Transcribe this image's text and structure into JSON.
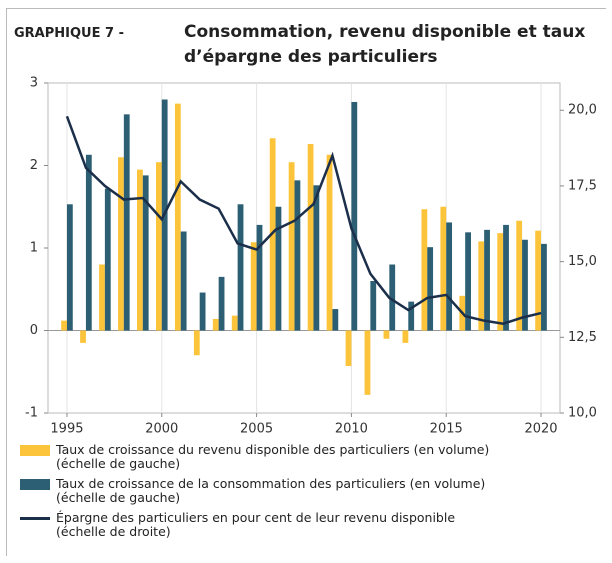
{
  "chart_data": {
    "type": "bar_line",
    "label": "GRAPHIQUE 7 -",
    "title": "Consommation, revenu disponible et taux\nd’épargne des particuliers",
    "x": [
      1995,
      1996,
      1997,
      1998,
      1999,
      2000,
      2001,
      2002,
      2003,
      2004,
      2005,
      2006,
      2007,
      2008,
      2009,
      2010,
      2011,
      2012,
      2013,
      2014,
      2015,
      2016,
      2017,
      2018,
      2019,
      2020
    ],
    "xlim": [
      1994,
      2021
    ],
    "xticks": [
      1995,
      2000,
      2005,
      2010,
      2015,
      2020
    ],
    "ylim": [
      -1,
      3
    ],
    "yticks": [
      -1,
      0,
      1,
      2,
      3
    ],
    "y2lim": [
      10,
      20.9
    ],
    "y2ticks": [
      {
        "value": 10,
        "label": "10,0"
      },
      {
        "value": 12.5,
        "label": "12,5"
      },
      {
        "value": 15,
        "label": "15,0"
      },
      {
        "value": 17.5,
        "label": "17,5"
      },
      {
        "value": 20,
        "label": "20,0"
      }
    ],
    "series": [
      {
        "name": "Taux de croissance du revenu disponible des particuliers (en volume)\n(échelle de gauche)",
        "type": "bar",
        "color": "#fcc43a",
        "values": [
          0.12,
          -0.15,
          0.8,
          2.1,
          1.95,
          2.04,
          2.75,
          -0.3,
          0.14,
          0.18,
          1.07,
          2.33,
          2.04,
          2.26,
          2.13,
          -0.43,
          -0.78,
          -0.1,
          -0.15,
          1.47,
          1.5,
          0.42,
          1.08,
          1.18,
          1.33,
          1.21
        ]
      },
      {
        "name": "Taux de croissance de la consommation des particuliers (en volume)\n(échelle de gauche)",
        "type": "bar",
        "color": "#2c5f73",
        "values": [
          1.53,
          2.13,
          1.72,
          2.62,
          1.88,
          2.8,
          1.2,
          0.46,
          0.65,
          1.53,
          1.28,
          1.5,
          1.82,
          1.76,
          0.26,
          2.77,
          0.6,
          0.8,
          0.35,
          1.01,
          1.31,
          1.19,
          1.22,
          1.28,
          1.1,
          1.05
        ]
      },
      {
        "name": "Épargne des particuliers en pour cent de leur revenu disponible\n(échelle de droite)",
        "type": "line",
        "axis": "y2",
        "color": "#1b2f4a",
        "values": [
          19.8,
          18.1,
          17.5,
          17.05,
          17.1,
          16.4,
          17.65,
          17.05,
          16.75,
          15.6,
          15.4,
          16.05,
          16.35,
          16.9,
          18.5,
          16.1,
          14.6,
          13.8,
          13.4,
          13.8,
          13.9,
          13.2,
          13.05,
          12.95,
          13.15,
          13.3
        ]
      }
    ]
  }
}
